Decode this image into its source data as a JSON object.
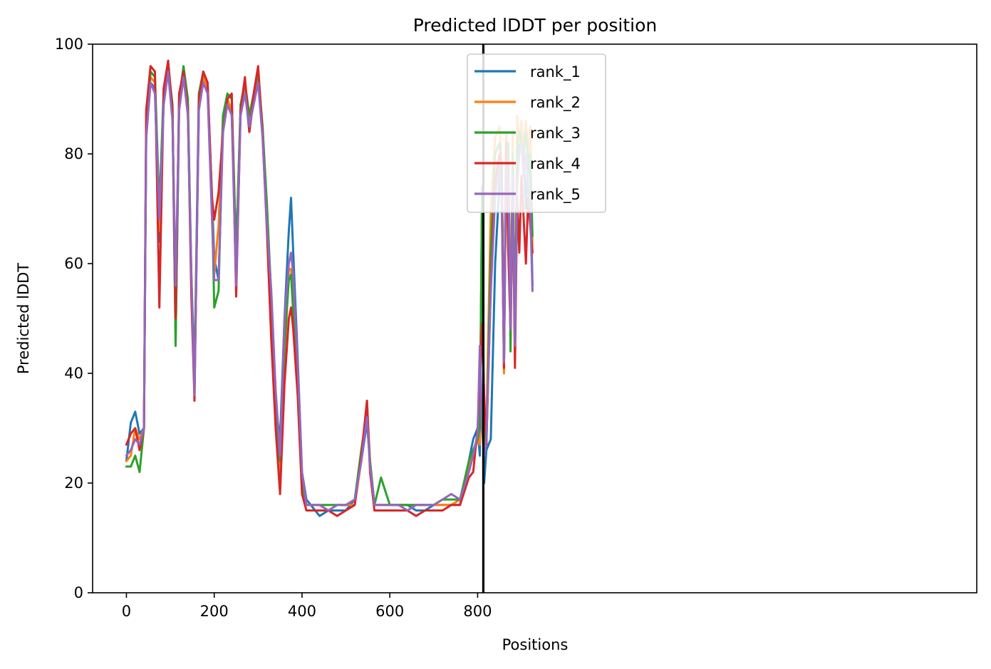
{
  "chart_data": {
    "type": "line",
    "title": "Predicted lDDT per position",
    "xlabel": "Positions",
    "ylabel": "Predicted lDDT",
    "xlim": [
      -77,
      1937
    ],
    "ylim": [
      0,
      100
    ],
    "x_ticks": [
      0,
      200,
      400,
      600,
      800
    ],
    "x_tick_labels": [
      "0",
      "200",
      "400",
      "600",
      "800"
    ],
    "y_ticks": [
      0,
      20,
      40,
      60,
      80,
      100
    ],
    "y_tick_labels": [
      "0",
      "20",
      "40",
      "60",
      "80",
      "100"
    ],
    "grid": false,
    "legend_position": "top-center",
    "vertical_line_x": 813,
    "vertical_line_color": "#000000",
    "series": [
      {
        "name": "rank_1",
        "color": "#1f77b4",
        "x": [
          0,
          10,
          20,
          30,
          40,
          45,
          55,
          65,
          75,
          85,
          95,
          105,
          112,
          120,
          130,
          140,
          148,
          155,
          165,
          175,
          185,
          195,
          200,
          210,
          220,
          230,
          240,
          250,
          260,
          270,
          280,
          290,
          300,
          310,
          320,
          330,
          340,
          350,
          360,
          370,
          375,
          380,
          390,
          400,
          410,
          420,
          440,
          460,
          480,
          500,
          520,
          535,
          548,
          555,
          565,
          580,
          600,
          620,
          640,
          660,
          680,
          700,
          720,
          740,
          760,
          780,
          790,
          800,
          805,
          810,
          815,
          820,
          830,
          840,
          850,
          855,
          860,
          865,
          870,
          875,
          880,
          885,
          890,
          895,
          900,
          905,
          910,
          915,
          920,
          925
        ],
        "y": [
          24,
          31,
          33,
          29,
          30,
          83,
          93,
          92,
          64,
          90,
          95,
          87,
          46,
          88,
          94,
          88,
          56,
          38,
          88,
          94,
          92,
          72,
          61,
          57,
          85,
          90,
          87,
          62,
          88,
          92,
          84,
          90,
          94,
          85,
          68,
          52,
          34,
          28,
          50,
          66,
          72,
          62,
          43,
          22,
          17,
          16,
          14,
          15,
          15,
          15,
          17,
          24,
          31,
          24,
          16,
          16,
          16,
          16,
          16,
          15,
          15,
          16,
          16,
          16,
          16,
          24,
          28,
          30,
          25,
          74,
          20,
          26,
          28,
          60,
          75,
          78,
          41,
          78,
          80,
          48,
          75,
          52,
          78,
          82,
          84,
          79,
          70,
          80,
          75,
          56
        ]
      },
      {
        "name": "rank_2",
        "color": "#ff7f0e",
        "x": [
          0,
          10,
          20,
          30,
          40,
          45,
          55,
          65,
          75,
          85,
          95,
          105,
          112,
          120,
          130,
          140,
          148,
          155,
          165,
          175,
          185,
          195,
          200,
          210,
          220,
          230,
          240,
          250,
          260,
          270,
          280,
          290,
          300,
          310,
          320,
          330,
          340,
          350,
          360,
          370,
          375,
          380,
          390,
          400,
          410,
          420,
          440,
          460,
          480,
          500,
          520,
          535,
          548,
          555,
          565,
          580,
          600,
          620,
          640,
          660,
          680,
          700,
          720,
          740,
          760,
          780,
          790,
          800,
          805,
          810,
          815,
          820,
          830,
          840,
          850,
          855,
          860,
          865,
          870,
          875,
          880,
          885,
          890,
          895,
          900,
          905,
          910,
          915,
          920,
          925
        ],
        "y": [
          24,
          25,
          30,
          28,
          30,
          84,
          94,
          93,
          66,
          91,
          96,
          88,
          50,
          89,
          95,
          89,
          57,
          38,
          89,
          94,
          92,
          70,
          58,
          67,
          87,
          90,
          88,
          61,
          88,
          92,
          86,
          90,
          95,
          84,
          70,
          54,
          34,
          20,
          42,
          59,
          59,
          54,
          38,
          20,
          16,
          16,
          16,
          15,
          16,
          16,
          16,
          24,
          35,
          24,
          16,
          16,
          16,
          16,
          16,
          16,
          16,
          16,
          16,
          16,
          17,
          23,
          25,
          28,
          27,
          70,
          25,
          30,
          70,
          83,
          85,
          78,
          40,
          84,
          80,
          46,
          84,
          42,
          87,
          82,
          86,
          81,
          86,
          80,
          85,
          62
        ]
      },
      {
        "name": "rank_3",
        "color": "#2ca02c",
        "x": [
          0,
          10,
          20,
          30,
          40,
          45,
          55,
          65,
          75,
          85,
          95,
          105,
          112,
          120,
          130,
          140,
          148,
          155,
          165,
          175,
          185,
          195,
          200,
          210,
          220,
          230,
          240,
          250,
          260,
          270,
          280,
          290,
          300,
          310,
          320,
          330,
          340,
          350,
          360,
          370,
          375,
          380,
          390,
          400,
          410,
          420,
          440,
          460,
          480,
          500,
          520,
          535,
          548,
          555,
          565,
          580,
          600,
          620,
          640,
          660,
          680,
          700,
          720,
          740,
          760,
          780,
          790,
          800,
          805,
          810,
          815,
          820,
          830,
          840,
          850,
          855,
          860,
          865,
          870,
          875,
          880,
          885,
          890,
          895,
          900,
          905,
          910,
          915,
          920,
          925
        ],
        "y": [
          23,
          23,
          25,
          22,
          30,
          85,
          95,
          94,
          70,
          92,
          96,
          89,
          45,
          90,
          96,
          90,
          58,
          40,
          91,
          95,
          93,
          71,
          52,
          55,
          87,
          91,
          90,
          62,
          89,
          93,
          87,
          91,
          95,
          85,
          71,
          54,
          35,
          24,
          45,
          57,
          58,
          51,
          38,
          20,
          16,
          16,
          16,
          16,
          16,
          16,
          17,
          26,
          33,
          24,
          16,
          21,
          16,
          16,
          16,
          16,
          16,
          16,
          17,
          17,
          17,
          24,
          26,
          28,
          30,
          72,
          28,
          27,
          62,
          80,
          82,
          77,
          42,
          80,
          82,
          44,
          80,
          45,
          82,
          84,
          82,
          80,
          84,
          78,
          80,
          65
        ]
      },
      {
        "name": "rank_4",
        "color": "#d62728",
        "x": [
          0,
          10,
          20,
          30,
          40,
          45,
          55,
          65,
          75,
          85,
          95,
          105,
          112,
          120,
          130,
          140,
          148,
          155,
          165,
          175,
          185,
          195,
          200,
          210,
          220,
          230,
          240,
          250,
          260,
          270,
          280,
          290,
          300,
          310,
          320,
          330,
          340,
          350,
          360,
          370,
          375,
          380,
          390,
          400,
          410,
          420,
          440,
          460,
          480,
          500,
          520,
          535,
          548,
          555,
          565,
          580,
          600,
          620,
          640,
          660,
          680,
          700,
          720,
          740,
          760,
          780,
          790,
          800,
          805,
          810,
          815,
          820,
          830,
          840,
          850,
          855,
          860,
          865,
          870,
          875,
          880,
          885,
          890,
          895,
          900,
          905,
          910,
          915,
          920,
          925
        ],
        "y": [
          27,
          29,
          30,
          26,
          30,
          88,
          96,
          95,
          52,
          92,
          97,
          88,
          50,
          91,
          95,
          88,
          54,
          35,
          90,
          95,
          93,
          72,
          68,
          73,
          84,
          90,
          91,
          54,
          88,
          94,
          84,
          91,
          96,
          84,
          66,
          46,
          30,
          18,
          38,
          50,
          52,
          48,
          36,
          18,
          15,
          15,
          15,
          15,
          14,
          15,
          16,
          25,
          35,
          22,
          15,
          15,
          15,
          15,
          15,
          14,
          15,
          15,
          15,
          16,
          16,
          21,
          22,
          30,
          38,
          49,
          36,
          27,
          56,
          75,
          80,
          72,
          41,
          82,
          62,
          48,
          74,
          41,
          72,
          62,
          76,
          68,
          60,
          72,
          67,
          62
        ]
      },
      {
        "name": "rank_5",
        "color": "#9467bd",
        "x": [
          0,
          10,
          20,
          30,
          40,
          45,
          55,
          65,
          75,
          85,
          95,
          105,
          112,
          120,
          130,
          140,
          148,
          155,
          165,
          175,
          185,
          195,
          200,
          210,
          220,
          230,
          240,
          250,
          260,
          270,
          280,
          290,
          300,
          310,
          320,
          330,
          340,
          350,
          360,
          370,
          375,
          380,
          390,
          400,
          410,
          420,
          440,
          460,
          480,
          500,
          520,
          535,
          548,
          555,
          565,
          580,
          600,
          620,
          640,
          660,
          680,
          700,
          720,
          740,
          760,
          780,
          790,
          800,
          805,
          810,
          815,
          820,
          830,
          840,
          850,
          855,
          860,
          865,
          870,
          875,
          880,
          885,
          890,
          895,
          900,
          905,
          910,
          915,
          920,
          925
        ],
        "y": [
          25,
          26,
          28,
          27,
          30,
          83,
          93,
          91,
          68,
          89,
          95,
          86,
          56,
          88,
          94,
          87,
          58,
          36,
          88,
          93,
          91,
          68,
          57,
          57,
          84,
          89,
          87,
          56,
          87,
          91,
          85,
          89,
          93,
          83,
          67,
          55,
          37,
          25,
          50,
          60,
          62,
          58,
          42,
          22,
          16,
          16,
          16,
          15,
          16,
          16,
          17,
          24,
          32,
          23,
          16,
          16,
          16,
          16,
          15,
          16,
          16,
          16,
          17,
          18,
          17,
          22,
          25,
          29,
          45,
          30,
          25,
          28,
          55,
          72,
          78,
          72,
          42,
          78,
          76,
          48,
          76,
          45,
          74,
          80,
          82,
          76,
          80,
          74,
          70,
          55
        ]
      }
    ]
  }
}
